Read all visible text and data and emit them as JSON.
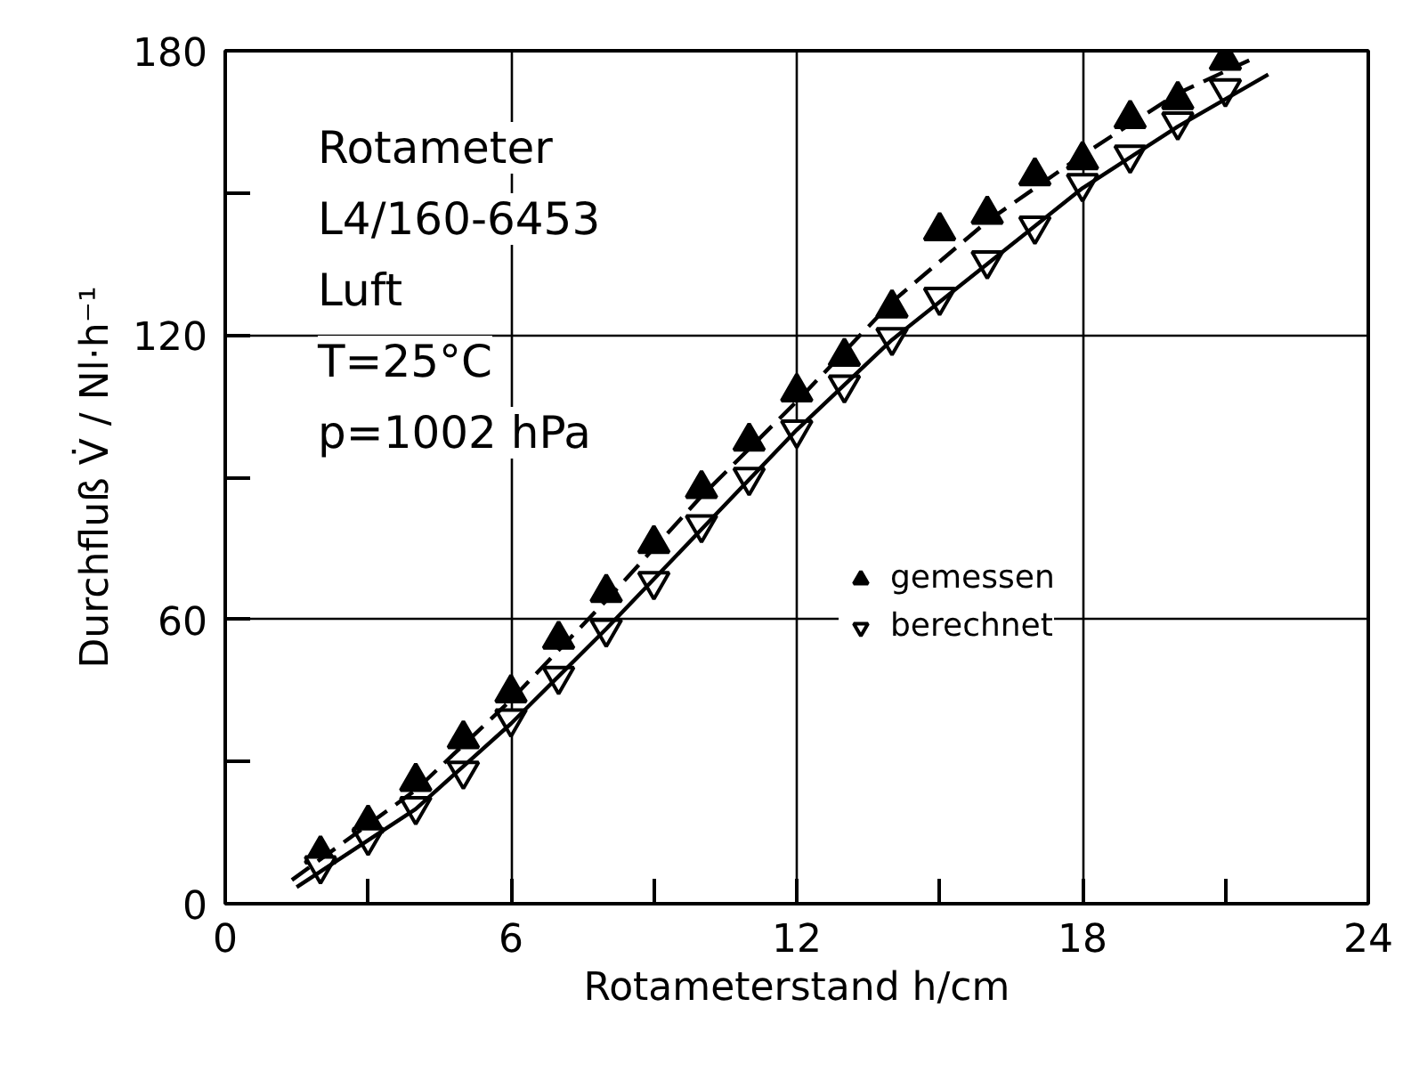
{
  "chart_data": {
    "type": "scatter",
    "xlabel": "Rotameterstand h/cm",
    "ylabel": "Durchfluß V̇ / Nl·h⁻¹",
    "x": [
      2,
      3,
      4,
      5,
      6,
      7,
      8,
      9,
      10,
      11,
      12,
      13,
      14,
      15,
      16,
      17,
      18,
      19,
      20,
      21
    ],
    "series": [
      {
        "name": "gemessen",
        "color": "#000000",
        "marker": "triangle",
        "values": [
          10.5,
          17,
          25.8,
          34.8,
          44.5,
          55.8,
          65.7,
          76,
          87.6,
          97.6,
          108,
          115.5,
          125.7,
          142,
          145.5,
          153.6,
          157,
          165.7,
          169.7,
          178
        ]
      },
      {
        "name": "berechnet",
        "color": "#000000",
        "marker": "triangle",
        "values": [
          8,
          14,
          20.5,
          28,
          39,
          48,
          58,
          68,
          80,
          90,
          100,
          109.5,
          119.5,
          128,
          135.7,
          143,
          152,
          158,
          165,
          172
        ]
      },
      {
        "type": "line",
        "line_style": "dashed",
        "color": "#000000",
        "x": [
          1.4,
          4,
          6,
          8,
          10,
          12,
          14,
          16,
          18,
          20,
          21.5
        ],
        "values": [
          5,
          24,
          43,
          64,
          86,
          106,
          127,
          144,
          158,
          171,
          178
        ]
      },
      {
        "type": "line",
        "line_style": "solid",
        "color": "#000000",
        "x": [
          1.5,
          4,
          6,
          8,
          10,
          12,
          14,
          16,
          18,
          20,
          21.9
        ],
        "values": [
          3.5,
          20,
          38,
          58,
          79,
          100,
          119,
          135,
          151,
          164,
          175
        ]
      }
    ],
    "xlim": [
      0,
      24
    ],
    "ylim": [
      0,
      180
    ],
    "xticks": [
      0,
      {
        "value": 3,
        "label": null
      },
      6,
      {
        "value": 9,
        "label": null
      },
      12,
      {
        "value": 15,
        "label": null
      },
      18,
      {
        "value": 21,
        "label": null
      },
      24
    ],
    "yticks": [
      0,
      {
        "value": 30,
        "label": null
      },
      60,
      {
        "value": 90,
        "label": null
      },
      120,
      {
        "value": 150,
        "label": null
      },
      180
    ],
    "grid": true,
    "legend": "right",
    "annotations": [
      "Rotameter",
      "L4/160-6453",
      "Luft",
      "T=25°C",
      "p=1002 hPa"
    ]
  }
}
